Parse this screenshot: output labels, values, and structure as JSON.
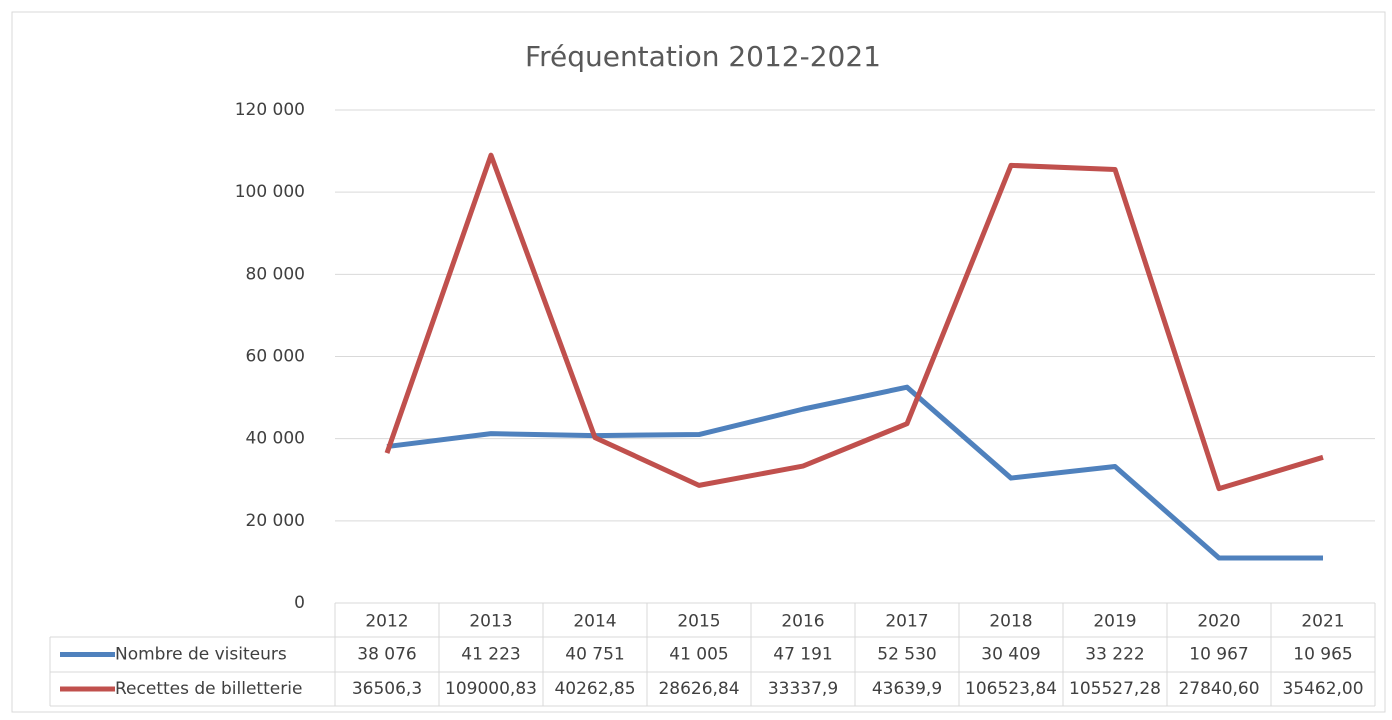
{
  "chart_data": {
    "type": "line",
    "title": "Fréquentation 2012-2021",
    "categories": [
      "2012",
      "2013",
      "2014",
      "2015",
      "2016",
      "2017",
      "2018",
      "2019",
      "2020",
      "2021"
    ],
    "series": [
      {
        "name": "Nombre de visiteurs",
        "color": "#4f81bd",
        "values": [
          38076,
          41223,
          40751,
          41005,
          47191,
          52530,
          30409,
          33222,
          10967,
          10965
        ],
        "value_labels": [
          "38 076",
          "41 223",
          "40 751",
          "41 005",
          "47 191",
          "52 530",
          "30 409",
          "33 222",
          "10 967",
          "10 965"
        ]
      },
      {
        "name": "Recettes de billetterie",
        "color": "#c0504d",
        "values": [
          36506.3,
          109000.83,
          40262.85,
          28626.84,
          33337.9,
          43639.9,
          106523.84,
          105527.28,
          27840.6,
          35462
        ],
        "value_labels": [
          "36506,3",
          "109000,83",
          "40262,85",
          "28626,84",
          "33337,9",
          "43639,9",
          "106523,84",
          "105527,28",
          "27840,60",
          "35462,00"
        ]
      }
    ],
    "ylim": [
      0,
      120000
    ],
    "yticks": [
      0,
      {
        "value": 20000,
        "label": "20 000"
      },
      {
        "value": 40000,
        "label": "40 000"
      },
      {
        "value": 60000,
        "label": "60 000"
      },
      {
        "value": 80000,
        "label": "80 000"
      },
      {
        "value": 100000,
        "label": "100 000"
      },
      {
        "value": 120000,
        "label": "120 000"
      }
    ],
    "grid": true
  }
}
